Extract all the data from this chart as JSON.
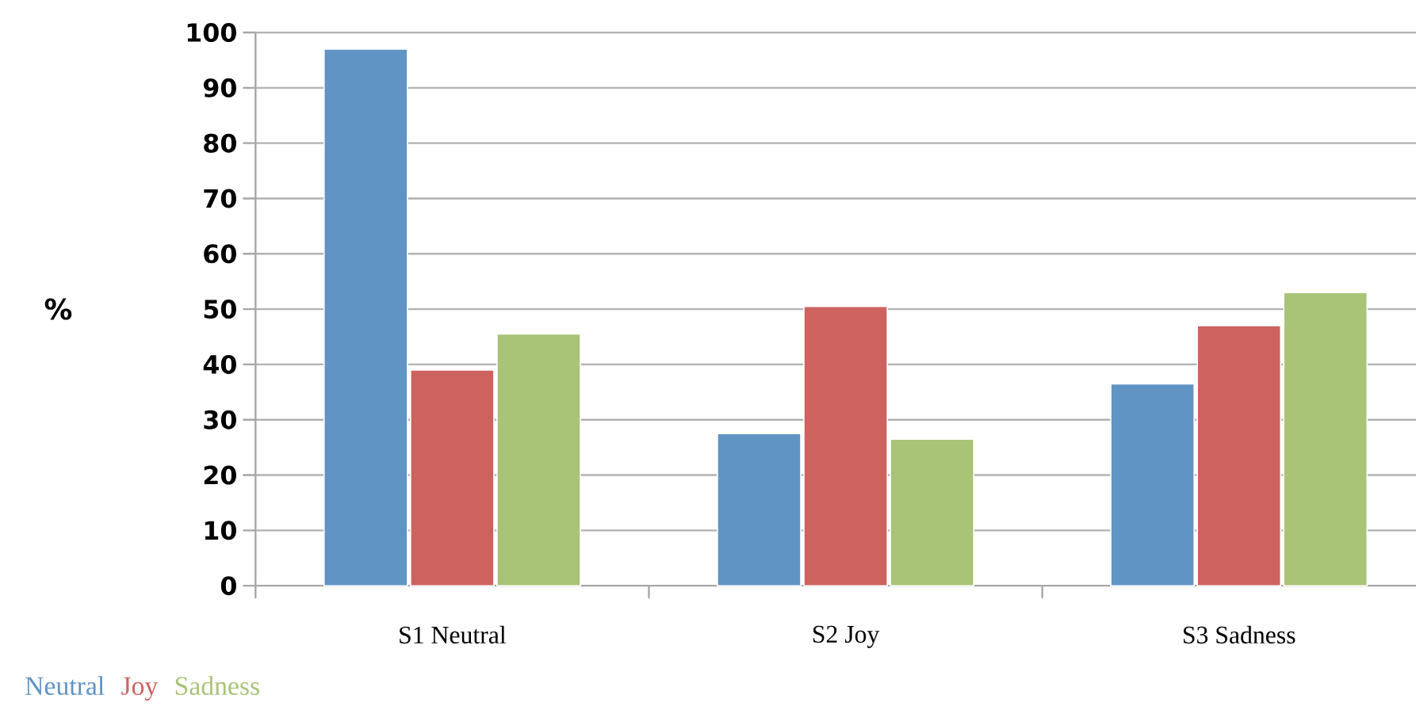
{
  "chart_data": {
    "type": "bar",
    "ylabel": "%",
    "categories": [
      "S1 Neutral",
      "S2  Joy",
      "S3 Sadness"
    ],
    "series": [
      {
        "name": "Neutral",
        "color": "#6094c5",
        "values": [
          97,
          27.5,
          36.5
        ]
      },
      {
        "name": "Joy",
        "color": "#cd625f",
        "values": [
          39,
          50.5,
          47
        ]
      },
      {
        "name": "Sadness",
        "color": "#a9c377",
        "values": [
          45.5,
          26.5,
          53
        ]
      }
    ],
    "ylim": [
      0,
      100
    ],
    "yticks": [
      0,
      10,
      20,
      30,
      40,
      50,
      60,
      70,
      80,
      90,
      100
    ],
    "grid": "y",
    "legend": "bottom left"
  }
}
